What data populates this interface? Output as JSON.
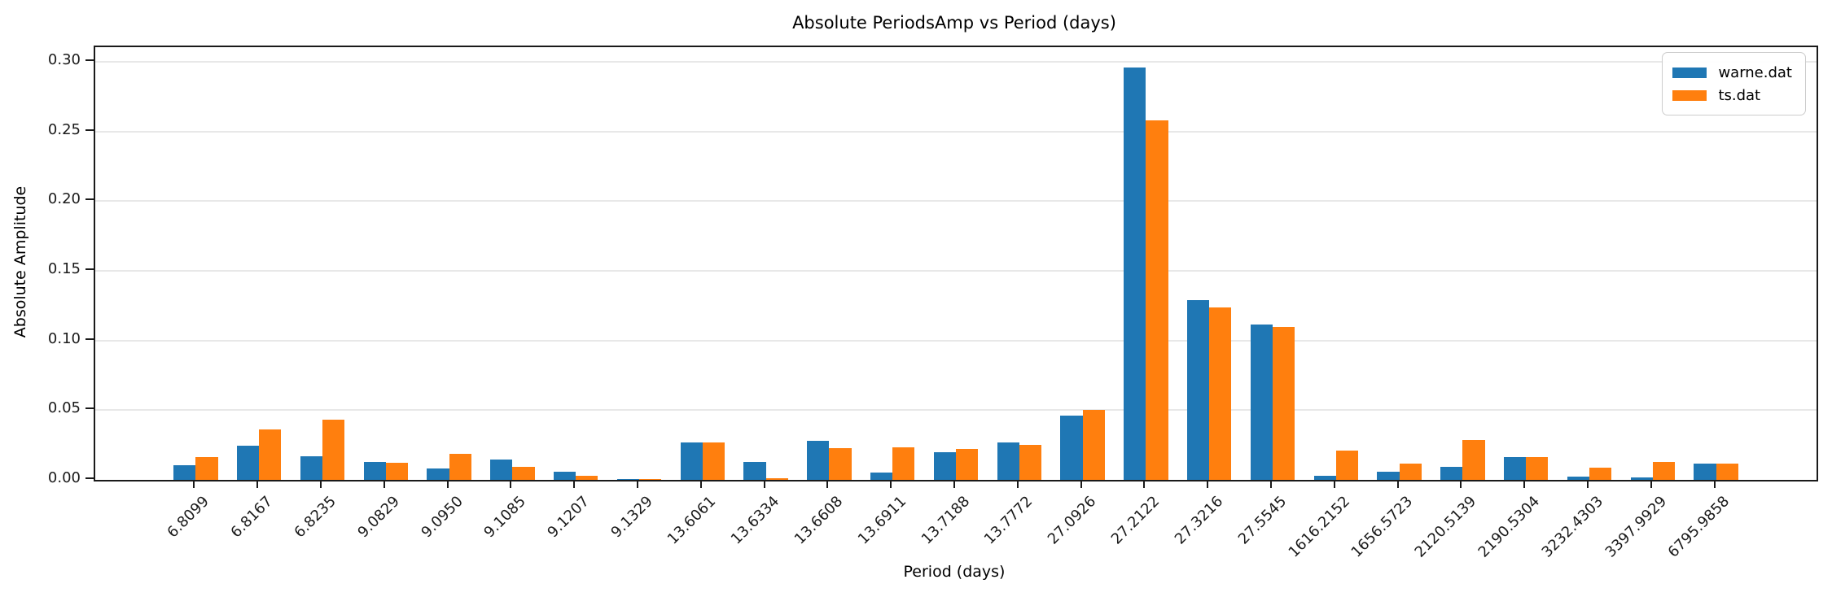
{
  "chart_data": {
    "type": "bar",
    "title": "Absolute PeriodsAmp vs Period (days)",
    "xlabel": "Period (days)",
    "ylabel": "Absolute Amplitude",
    "categories": [
      "6.8099",
      "6.8167",
      "6.8235",
      "9.0829",
      "9.0950",
      "9.1085",
      "9.1207",
      "9.1329",
      "13.6061",
      "13.6334",
      "13.6608",
      "13.6911",
      "13.7188",
      "13.7772",
      "27.0926",
      "27.2122",
      "27.3216",
      "27.5545",
      "1616.2152",
      "1656.5723",
      "2120.5139",
      "2190.5304",
      "3232.4303",
      "3397.9929",
      "6795.9858"
    ],
    "series": [
      {
        "name": "warne.dat",
        "color": "#1f77b4",
        "values": [
          0.0104,
          0.0246,
          0.0172,
          0.0128,
          0.0083,
          0.0145,
          0.006,
          0.0003,
          0.0269,
          0.013,
          0.0283,
          0.0054,
          0.0199,
          0.0271,
          0.0462,
          0.2957,
          0.1287,
          0.1114,
          0.0029,
          0.0058,
          0.0094,
          0.0166,
          0.0023,
          0.002,
          0.0114
        ]
      },
      {
        "name": "ts.dat",
        "color": "#ff7f0e",
        "values": [
          0.0164,
          0.0364,
          0.0433,
          0.0122,
          0.0186,
          0.0093,
          0.0032,
          0.0008,
          0.0267,
          0.001,
          0.0229,
          0.0234,
          0.0221,
          0.0252,
          0.0501,
          0.2578,
          0.1239,
          0.1097,
          0.0213,
          0.0114,
          0.0285,
          0.0162,
          0.009,
          0.0126,
          0.0114
        ]
      }
    ],
    "ylim": [
      0,
      0.3105
    ],
    "yticks": [
      0.0,
      0.05,
      0.1,
      0.15,
      0.2,
      0.25,
      0.3
    ],
    "ytick_format_decimals": 2,
    "grid": true,
    "legend_position": "upper right",
    "bar_width": 0.35,
    "x_tick_rotation": 45
  }
}
